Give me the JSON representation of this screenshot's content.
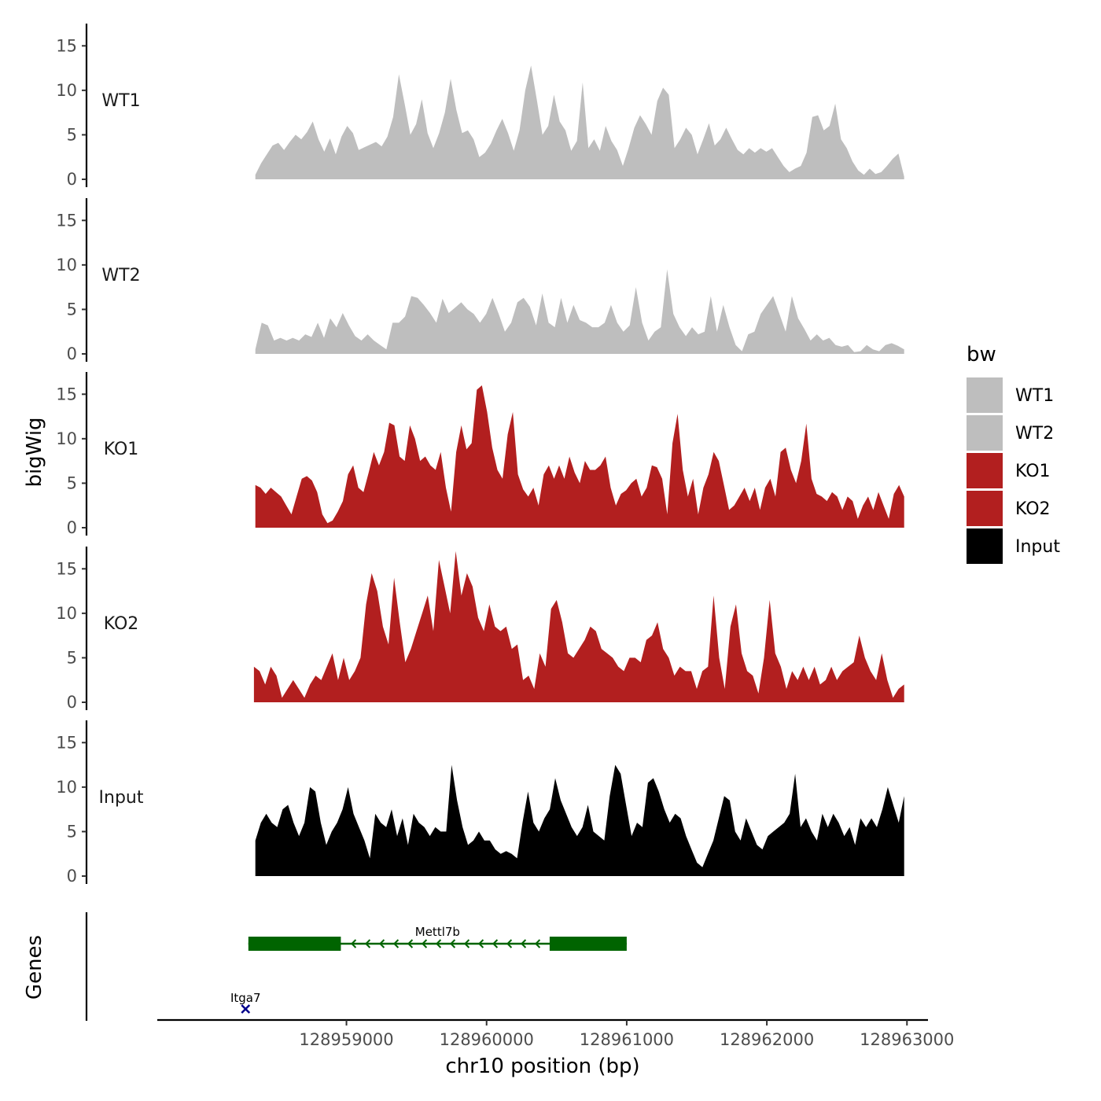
{
  "chart_data": {
    "type": "area",
    "title": "",
    "xlabel": "chr10 position (bp)",
    "ylabel": "bigWig",
    "genes_track_label": "Genes",
    "xlim": [
      128957650,
      128963150
    ],
    "ylim": [
      0,
      17.5
    ],
    "x_ticks": [
      128959000,
      128960000,
      128961000,
      128962000,
      128963000
    ],
    "y_ticks": [
      0,
      5,
      10,
      15
    ],
    "x_range_covered": [
      128958350,
      128962980
    ],
    "legend": {
      "title": "bw",
      "entries": [
        {
          "label": "WT1",
          "color": "#bebebe"
        },
        {
          "label": "WT2",
          "color": "#bebebe"
        },
        {
          "label": "KO1",
          "color": "#b21f1f"
        },
        {
          "label": "KO2",
          "color": "#b21f1f"
        },
        {
          "label": "Input",
          "color": "#000000"
        }
      ]
    },
    "series": [
      {
        "name": "WT1",
        "color": "#bebebe",
        "values": [
          0.5,
          1.8,
          2.8,
          3.8,
          4.1,
          3.3,
          4.2,
          5.0,
          4.5,
          5.3,
          6.5,
          4.5,
          3.1,
          4.6,
          2.8,
          4.8,
          6.0,
          5.2,
          3.3,
          3.6,
          3.9,
          4.2,
          3.7,
          4.8,
          7.0,
          11.8,
          8.5,
          5.0,
          6.2,
          9.0,
          5.2,
          3.5,
          5.2,
          7.5,
          11.3,
          7.8,
          5.2,
          5.5,
          4.5,
          2.5,
          3.0,
          4.0,
          5.5,
          6.8,
          5.2,
          3.2,
          5.5,
          10.0,
          12.8,
          9.0,
          5.0,
          6.0,
          9.5,
          6.5,
          5.5,
          3.2,
          4.3,
          10.9,
          3.5,
          4.5,
          3.2,
          6.0,
          4.3,
          3.3,
          1.5,
          3.5,
          5.8,
          7.2,
          6.2,
          5.0,
          8.8,
          10.3,
          9.5,
          3.5,
          4.5,
          5.8,
          5.0,
          2.8,
          4.5,
          6.3,
          3.8,
          4.5,
          5.8,
          4.5,
          3.3,
          2.8,
          3.5,
          3.0,
          3.5,
          3.1,
          3.5,
          2.5,
          1.5,
          0.8,
          1.2,
          1.5,
          3.0,
          7.0,
          7.2,
          5.5,
          6.0,
          8.5,
          4.5,
          3.5,
          2.0,
          1.0,
          0.5,
          1.2,
          0.6,
          0.8,
          1.5,
          2.3,
          2.9,
          0.3
        ],
        "x_start": 128958350,
        "x_end": 128962980
      },
      {
        "name": "WT2",
        "color": "#bebebe",
        "values": [
          0.5,
          3.5,
          3.2,
          1.5,
          1.8,
          1.5,
          1.8,
          1.5,
          2.2,
          1.9,
          3.5,
          1.8,
          4.0,
          3.0,
          4.6,
          3.2,
          2.0,
          1.5,
          2.2,
          1.5,
          1.0,
          0.5,
          3.5,
          3.5,
          4.2,
          6.5,
          6.3,
          5.5,
          4.6,
          3.5,
          6.2,
          4.6,
          5.2,
          5.8,
          5.0,
          4.5,
          3.5,
          4.5,
          6.3,
          4.5,
          2.5,
          3.5,
          5.8,
          6.3,
          5.3,
          3.2,
          6.8,
          3.5,
          3.0,
          6.3,
          3.5,
          5.5,
          3.8,
          3.5,
          3.0,
          3.0,
          3.5,
          5.5,
          3.5,
          2.5,
          3.2,
          7.5,
          3.5,
          1.5,
          2.5,
          3.0,
          9.5,
          4.5,
          3.0,
          2.0,
          3.0,
          2.2,
          2.5,
          6.5,
          2.5,
          5.5,
          3.0,
          1.0,
          0.3,
          2.2,
          2.5,
          4.5,
          5.5,
          6.5,
          4.5,
          2.5,
          6.5,
          4.0,
          2.8,
          1.5,
          2.2,
          1.5,
          1.8,
          1.0,
          0.8,
          1.0,
          0.2,
          0.3,
          1.0,
          0.5,
          0.3,
          1.0,
          1.2,
          0.9,
          0.5
        ],
        "x_start": 128958350,
        "x_end": 128962980
      },
      {
        "name": "KO1",
        "color": "#b21f1f",
        "values": [
          4.8,
          4.5,
          3.8,
          4.5,
          4.0,
          3.5,
          2.5,
          1.5,
          3.5,
          5.5,
          5.8,
          5.3,
          4.0,
          1.5,
          0.5,
          0.8,
          1.8,
          3.0,
          6.0,
          7.0,
          4.5,
          4.0,
          6.2,
          8.5,
          7.0,
          8.5,
          11.8,
          11.5,
          8.0,
          7.5,
          11.5,
          10.0,
          7.5,
          8.0,
          7.0,
          6.5,
          8.5,
          4.5,
          1.8,
          8.5,
          11.5,
          8.8,
          9.5,
          15.5,
          16.0,
          13.0,
          9.0,
          6.5,
          5.5,
          10.5,
          13.0,
          6.0,
          4.3,
          3.5,
          4.5,
          2.5,
          6.0,
          7.0,
          5.5,
          7.0,
          5.5,
          8.0,
          6.2,
          5.0,
          7.5,
          6.5,
          6.5,
          7.0,
          8.0,
          4.5,
          2.5,
          3.8,
          4.2,
          5.0,
          5.5,
          3.5,
          4.5,
          7.0,
          6.8,
          5.5,
          1.5,
          9.5,
          12.8,
          6.5,
          3.5,
          5.5,
          1.5,
          4.5,
          6.0,
          8.5,
          7.5,
          4.8,
          2.0,
          2.5,
          3.5,
          4.5,
          3.0,
          4.5,
          2.0,
          4.5,
          5.5,
          3.5,
          8.5,
          9.0,
          6.5,
          5.0,
          7.5,
          11.7,
          5.5,
          3.8,
          3.5,
          3.0,
          4.0,
          3.5,
          2.0,
          3.5,
          3.0,
          1.0,
          2.5,
          3.5,
          2.0,
          4.0,
          2.5,
          1.0,
          3.8,
          4.8,
          3.5
        ],
        "x_start": 128958350,
        "x_end": 128962980
      },
      {
        "name": "KO2",
        "color": "#b21f1f",
        "values": [
          4.0,
          3.5,
          2.0,
          4.0,
          3.0,
          0.5,
          1.5,
          2.5,
          1.5,
          0.5,
          2.0,
          3.0,
          2.5,
          4.0,
          5.5,
          2.5,
          5.0,
          2.5,
          3.5,
          5.0,
          11.0,
          14.5,
          12.5,
          8.5,
          6.5,
          14.0,
          9.0,
          4.5,
          6.0,
          8.0,
          10.0,
          12.0,
          8.0,
          16.0,
          13.0,
          10.0,
          17.0,
          12.0,
          14.5,
          13.0,
          9.5,
          8.0,
          11.0,
          8.5,
          8.0,
          8.5,
          6.0,
          6.5,
          2.5,
          3.0,
          1.5,
          5.5,
          4.0,
          10.5,
          11.5,
          9.0,
          5.5,
          5.0,
          6.0,
          7.0,
          8.5,
          8.0,
          6.0,
          5.5,
          5.0,
          4.0,
          3.5,
          5.0,
          5.0,
          4.5,
          7.0,
          7.5,
          9.0,
          6.0,
          5.0,
          3.0,
          4.0,
          3.5,
          3.5,
          1.5,
          3.5,
          4.0,
          12.0,
          5.0,
          1.5,
          8.5,
          11.0,
          5.5,
          3.5,
          3.0,
          1.0,
          5.0,
          11.5,
          5.5,
          4.0,
          1.5,
          3.5,
          2.5,
          4.0,
          2.5,
          4.0,
          2.0,
          2.5,
          4.0,
          2.5,
          3.5,
          4.0,
          4.5,
          7.5,
          5.0,
          3.5,
          2.5,
          5.5,
          2.5,
          0.5,
          1.5,
          2.0
        ],
        "x_start": 128958340,
        "x_end": 128962980
      },
      {
        "name": "Input",
        "color": "#000000",
        "values": [
          4.0,
          6.0,
          7.0,
          6.0,
          5.5,
          7.5,
          8.0,
          6.0,
          4.5,
          6.0,
          10.0,
          9.5,
          6.0,
          3.5,
          5.0,
          6.0,
          7.5,
          10.0,
          7.0,
          5.5,
          4.0,
          2.0,
          7.0,
          6.0,
          5.5,
          7.5,
          4.5,
          6.5,
          3.5,
          7.0,
          6.0,
          5.5,
          4.5,
          5.5,
          5.0,
          5.0,
          12.5,
          8.5,
          5.5,
          3.5,
          4.0,
          5.0,
          4.0,
          4.0,
          3.0,
          2.5,
          2.8,
          2.5,
          2.0,
          6.0,
          9.5,
          6.0,
          5.0,
          6.5,
          7.5,
          11.0,
          8.5,
          7.0,
          5.5,
          4.5,
          5.5,
          8.0,
          5.0,
          4.5,
          4.0,
          9.0,
          12.5,
          11.5,
          8.0,
          4.5,
          6.0,
          5.5,
          10.5,
          11.0,
          9.5,
          7.5,
          6.0,
          7.0,
          6.5,
          4.5,
          3.0,
          1.5,
          1.0,
          2.5,
          4.0,
          6.5,
          9.0,
          8.5,
          5.0,
          4.0,
          6.5,
          5.0,
          3.5,
          3.0,
          4.5,
          5.0,
          5.5,
          6.0,
          7.0,
          11.5,
          5.5,
          6.5,
          5.0,
          4.0,
          7.0,
          5.5,
          7.0,
          6.0,
          4.5,
          5.5,
          3.5,
          6.5,
          5.5,
          6.5,
          5.5,
          7.5,
          10.0,
          8.0,
          6.0,
          9.0
        ],
        "x_start": 128958350,
        "x_end": 128962980
      }
    ],
    "genes": [
      {
        "name": "Mettl7b",
        "strand": "-",
        "color": "#006400",
        "start": 128958300,
        "end": 128961000,
        "exons": [
          [
            128958300,
            128958960
          ],
          [
            128960450,
            128961000
          ]
        ]
      },
      {
        "name": "Itga7",
        "strand": "",
        "color": "#00008b",
        "start": 128958280,
        "end": 128958280,
        "exons": []
      }
    ]
  }
}
